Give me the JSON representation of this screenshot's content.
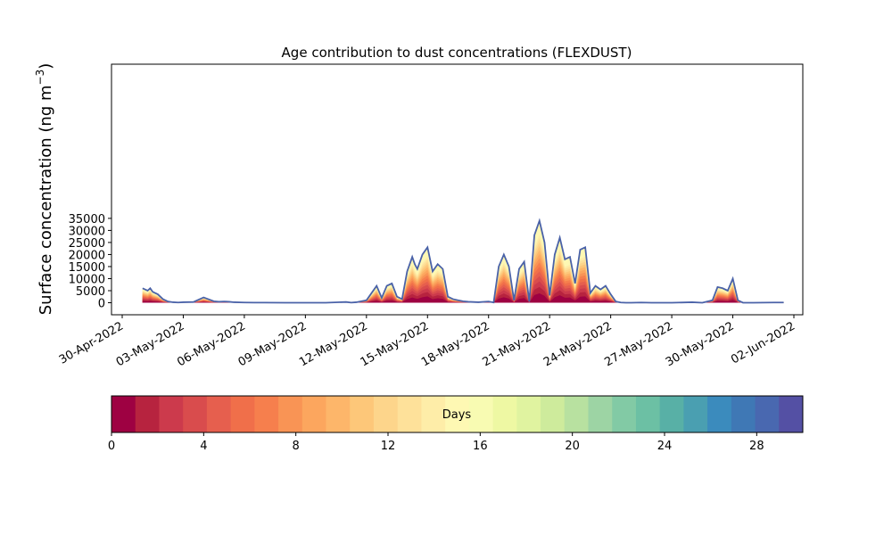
{
  "chart_data": {
    "type": "area",
    "title": "Age contribution to dust concentrations (FLEXDUST)",
    "ylabel": "Surface concentration (ng m",
    "ylabel_sup": "−3",
    "ylabel_close": ")",
    "xlabel": "",
    "x_range": [
      "2022-04-30T00:00",
      "2022-06-02T00:00"
    ],
    "ylim": [
      -1800,
      36000
    ],
    "yticks": [
      0,
      5000,
      10000,
      15000,
      20000,
      25000,
      30000,
      35000
    ],
    "ytick_labels": [
      "0",
      "5000",
      "10000",
      "15000",
      "20000",
      "25000",
      "30000",
      "35000"
    ],
    "xticks": [
      "2022-04-30",
      "2022-05-03",
      "2022-05-06",
      "2022-05-09",
      "2022-05-12",
      "2022-05-15",
      "2022-05-18",
      "2022-05-21",
      "2022-05-24",
      "2022-05-27",
      "2022-05-30",
      "2022-06-02"
    ],
    "xtick_labels": [
      "30-Apr-2022",
      "03-May-2022",
      "06-May-2022",
      "09-May-2022",
      "12-May-2022",
      "15-May-2022",
      "18-May-2022",
      "21-May-2022",
      "24-May-2022",
      "27-May-2022",
      "30-May-2022",
      "02-Jun-2022"
    ],
    "grid": false,
    "line_color": "#4a62a8",
    "total_series": {
      "x": [
        "2022-05-01T00:00",
        "2022-05-01T06:00",
        "2022-05-01T09:00",
        "2022-05-01T12:00",
        "2022-05-01T18:00",
        "2022-05-02T00:00",
        "2022-05-02T06:00",
        "2022-05-02T12:00",
        "2022-05-02T18:00",
        "2022-05-03T00:00",
        "2022-05-03T12:00",
        "2022-05-04T00:00",
        "2022-05-04T12:00",
        "2022-05-04T18:00",
        "2022-05-05T00:00",
        "2022-05-05T06:00",
        "2022-05-05T12:00",
        "2022-05-06T00:00",
        "2022-05-06T12:00",
        "2022-05-07T00:00",
        "2022-05-08T00:00",
        "2022-05-09T00:00",
        "2022-05-10T00:00",
        "2022-05-11T00:00",
        "2022-05-11T06:00",
        "2022-05-11T12:00",
        "2022-05-12T00:00",
        "2022-05-12T06:00",
        "2022-05-12T12:00",
        "2022-05-12T18:00",
        "2022-05-13T00:00",
        "2022-05-13T06:00",
        "2022-05-13T12:00",
        "2022-05-13T18:00",
        "2022-05-14T00:00",
        "2022-05-14T06:00",
        "2022-05-14T09:00",
        "2022-05-14T12:00",
        "2022-05-14T18:00",
        "2022-05-15T00:00",
        "2022-05-15T06:00",
        "2022-05-15T12:00",
        "2022-05-15T18:00",
        "2022-05-16T00:00",
        "2022-05-16T06:00",
        "2022-05-16T12:00",
        "2022-05-16T18:00",
        "2022-05-17T00:00",
        "2022-05-17T12:00",
        "2022-05-18T00:00",
        "2022-05-18T06:00",
        "2022-05-18T12:00",
        "2022-05-18T18:00",
        "2022-05-19T00:00",
        "2022-05-19T06:00",
        "2022-05-19T12:00",
        "2022-05-19T18:00",
        "2022-05-20T00:00",
        "2022-05-20T06:00",
        "2022-05-20T12:00",
        "2022-05-20T18:00",
        "2022-05-21T00:00",
        "2022-05-21T06:00",
        "2022-05-21T12:00",
        "2022-05-21T18:00",
        "2022-05-22T00:00",
        "2022-05-22T06:00",
        "2022-05-22T12:00",
        "2022-05-22T18:00",
        "2022-05-23T00:00",
        "2022-05-23T06:00",
        "2022-05-23T12:00",
        "2022-05-23T18:00",
        "2022-05-24T00:00",
        "2022-05-24T06:00",
        "2022-05-24T12:00",
        "2022-05-24T18:00",
        "2022-05-25T00:00",
        "2022-05-25T12:00",
        "2022-05-26T00:00",
        "2022-05-27T00:00",
        "2022-05-28T00:00",
        "2022-05-28T12:00",
        "2022-05-29T00:00",
        "2022-05-29T06:00",
        "2022-05-29T12:00",
        "2022-05-29T18:00",
        "2022-05-30T00:00",
        "2022-05-30T06:00",
        "2022-05-30T12:00",
        "2022-05-31T00:00",
        "2022-06-01T00:00",
        "2022-06-01T12:00"
      ],
      "y": [
        6000,
        5000,
        6000,
        4500,
        3500,
        1500,
        500,
        200,
        100,
        200,
        300,
        2200,
        600,
        400,
        500,
        400,
        200,
        100,
        50,
        50,
        0,
        0,
        0,
        300,
        50,
        200,
        1000,
        4000,
        7000,
        2000,
        7000,
        8000,
        2500,
        1500,
        13000,
        19000,
        16000,
        14000,
        20000,
        23000,
        13000,
        16000,
        14000,
        2500,
        1500,
        1000,
        600,
        400,
        200,
        500,
        100,
        15000,
        20000,
        15000,
        1000,
        14000,
        17000,
        500,
        28000,
        34000,
        25000,
        3000,
        20000,
        27000,
        18000,
        19000,
        8000,
        22000,
        23000,
        4000,
        7000,
        5500,
        7000,
        3500,
        500,
        100,
        0,
        0,
        100,
        0,
        0,
        200,
        0,
        1000,
        6500,
        6000,
        5000,
        10000,
        1000,
        0,
        0,
        100,
        100
      ]
    },
    "colorbar": {
      "label": "Days",
      "min": 0,
      "max": 30,
      "ticks": [
        0,
        4,
        8,
        12,
        16,
        20,
        24,
        28
      ],
      "tick_labels": [
        "0",
        "4",
        "8",
        "12",
        "16",
        "20",
        "24",
        "28"
      ],
      "colors": [
        "#9e0142",
        "#b7233f",
        "#cc3a4c",
        "#d94c4d",
        "#e65f4e",
        "#f06f4a",
        "#f67f4d",
        "#f99455",
        "#fca65e",
        "#fdb66a",
        "#fdc779",
        "#fdd58b",
        "#fee19a",
        "#feeda8",
        "#fef8b3",
        "#f8fbb2",
        "#eef8a3",
        "#e0f3a0",
        "#ceeb9c",
        "#b8e1a0",
        "#9dd4a4",
        "#82caa5",
        "#6cc0a4",
        "#58b0a6",
        "#4a9fb1",
        "#3b8bbd",
        "#3f78b5",
        "#4968b0",
        "#5450a4"
      ]
    }
  }
}
